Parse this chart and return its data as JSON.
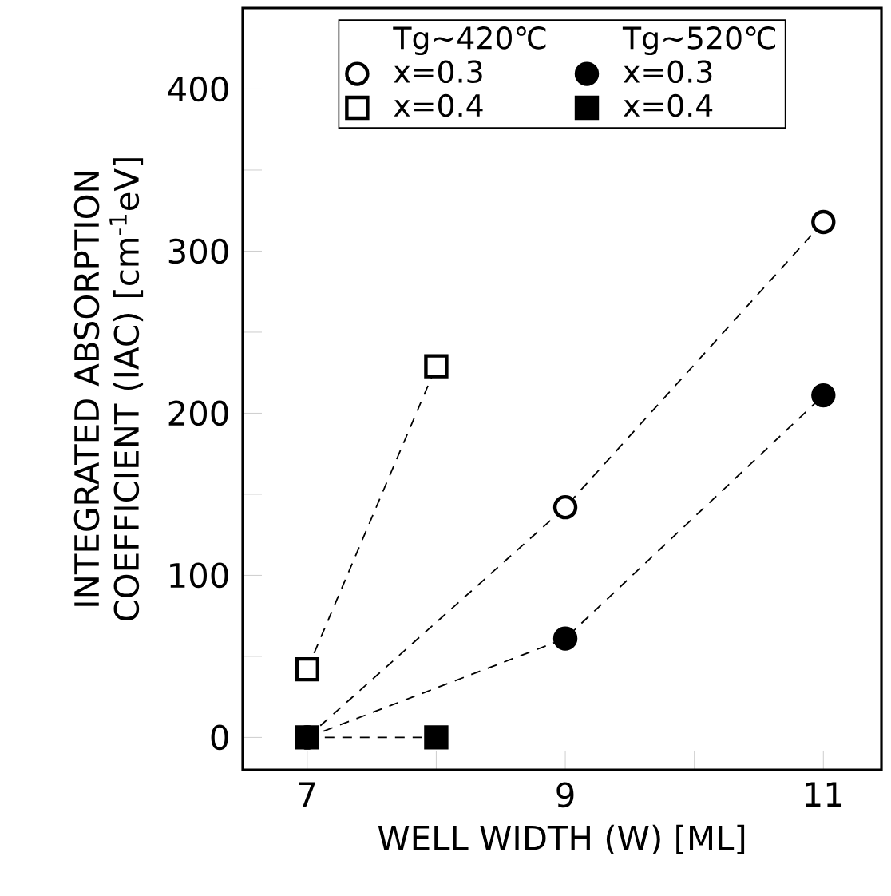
{
  "chart_data": {
    "type": "line",
    "xlabel": "WELL WIDTH (W) [ML]",
    "ylabel": "INTEGRATED ABSORPTION COEFFICIENT (IAC) [cm$^{-1}$eV]",
    "annotations": [
      "Tg~420℃",
      "Tg~520℃"
    ],
    "xlim": [
      6.5,
      11.45
    ],
    "ylim": [
      -20,
      450
    ],
    "xticks": [
      7,
      {
        "value": 8,
        "label": null
      },
      9,
      {
        "value": 10,
        "label": null
      },
      11
    ],
    "yticks": [
      0,
      {
        "value": 50,
        "label": null
      },
      100,
      {
        "value": 150,
        "label": null
      },
      200,
      {
        "value": 250,
        "label": null
      },
      300,
      {
        "value": 350,
        "label": null
      },
      400
    ],
    "line_style": "dashed",
    "legend": "top",
    "grid": false,
    "series": [
      {
        "name": "x=0.3",
        "color": "#000000",
        "colors": [
          "#ffffff",
          "#ffffff",
          "#ffffff"
        ],
        "marker": "circle",
        "x": [
          7,
          9,
          11
        ],
        "values": [
          0,
          142,
          318
        ]
      },
      {
        "name": "x=0.4",
        "color": "#000000",
        "colors": [
          "#ffffff",
          "#ffffff"
        ],
        "marker": "square",
        "x": [
          7,
          8
        ],
        "values": [
          42,
          229
        ]
      },
      {
        "name": "x=0.3",
        "color": "#000000",
        "colors": [
          "#000000",
          "#000000",
          "#000000"
        ],
        "marker": "circle",
        "x": [
          7,
          9,
          11
        ],
        "values": [
          0,
          61,
          211
        ]
      },
      {
        "name": "x=0.4",
        "color": "#000000",
        "colors": [
          "#000000",
          "#000000"
        ],
        "marker": "square",
        "x": [
          7,
          8
        ],
        "values": [
          0,
          0
        ]
      }
    ]
  }
}
